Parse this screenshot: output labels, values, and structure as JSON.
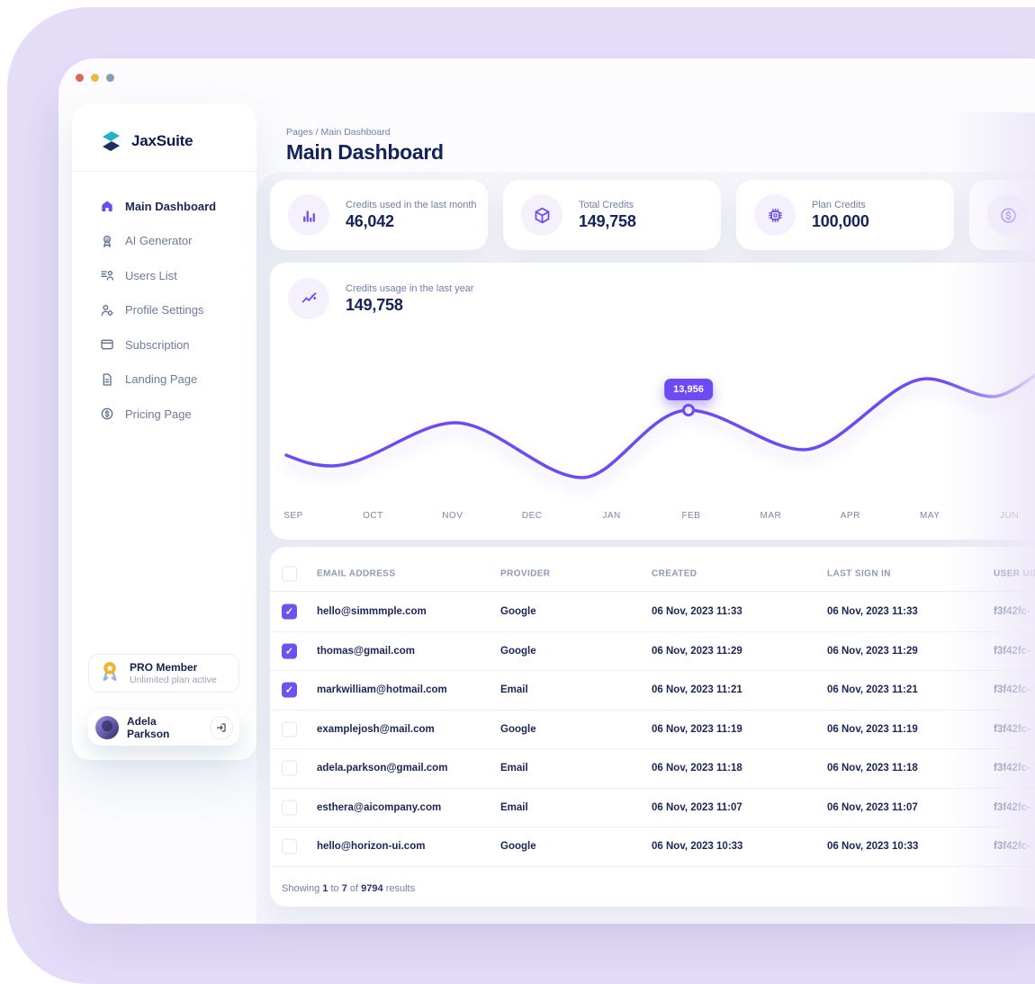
{
  "colors": {
    "accent": "#6C4BF5",
    "checkbox": "#6E51EF",
    "chart_line": "#6C4BF5",
    "background_lavender": "#E5DDF8",
    "text_navy": "#1B2559",
    "text_gray": "#707EAE",
    "traffic_lights": [
      "#D9695A",
      "#E9BA47",
      "#8D9DB0"
    ]
  },
  "sidebar": {
    "brand": "JaxSuite",
    "items": [
      {
        "label": "Main Dashboard",
        "icon": "home",
        "active": true
      },
      {
        "label": "AI Generator",
        "icon": "badge",
        "active": false
      },
      {
        "label": "Users List",
        "icon": "users-list",
        "active": false
      },
      {
        "label": "Profile Settings",
        "icon": "user-gear",
        "active": false
      },
      {
        "label": "Subscription",
        "icon": "credit-card",
        "active": false
      },
      {
        "label": "Landing Page",
        "icon": "document",
        "active": false
      },
      {
        "label": "Pricing Page",
        "icon": "dollar-circle",
        "active": false
      }
    ],
    "pro_card": {
      "title": "PRO Member",
      "subtitle": "Unlimited plan active",
      "icon": "medal"
    },
    "user": {
      "name": "Adela Parkson",
      "logout_icon": "logout"
    }
  },
  "header": {
    "breadcrumb": "Pages / Main Dashboard",
    "title": "Main Dashboard"
  },
  "stats": [
    {
      "label": "Credits used in the last month",
      "value": "46,042",
      "icon": "bar-chart"
    },
    {
      "label": "Total Credits",
      "value": "149,758",
      "icon": "cube"
    },
    {
      "label": "Plan Credits",
      "value": "100,000",
      "icon": "chip"
    },
    {
      "label": "",
      "value": "",
      "icon": "coin"
    }
  ],
  "chart_card": {
    "label": "Credits usage in the last year",
    "value": "149,758",
    "icon": "trend",
    "tooltip": "13,956"
  },
  "chart_data": {
    "type": "line",
    "title": "Credits usage in the last year",
    "categories": [
      "SEP",
      "OCT",
      "NOV",
      "DEC",
      "JAN",
      "FEB",
      "MAR",
      "APR",
      "MAY",
      "JUN"
    ],
    "series": [
      {
        "name": "Credits",
        "values": [
          10400,
          11500,
          13000,
          9800,
          10500,
          13956,
          11500,
          12900,
          16400,
          16200
        ]
      }
    ],
    "highlighted_point": {
      "category": "FEB",
      "value": 13956,
      "label": "13,956"
    },
    "line_color": "#6C4BF5",
    "grid": false,
    "y_axis_visible": false,
    "legend": "none",
    "note": "values other than the FEB tooltip are estimated from curve height"
  },
  "table": {
    "columns": [
      "EMAIL ADDRESS",
      "PROVIDER",
      "CREATED",
      "LAST SIGN IN",
      "USER UID"
    ],
    "rows": [
      {
        "checked": true,
        "email": "hello@simmmple.com",
        "provider": "Google",
        "created": "06 Nov, 2023 11:33",
        "last_sign_in": "06 Nov, 2023 11:33",
        "user_uid": "f3f42fc-"
      },
      {
        "checked": true,
        "email": "thomas@gmail.com",
        "provider": "Google",
        "created": "06 Nov, 2023 11:29",
        "last_sign_in": "06 Nov, 2023 11:29",
        "user_uid": "f3f42fc-"
      },
      {
        "checked": true,
        "email": "markwilliam@hotmail.com",
        "provider": "Email",
        "created": "06 Nov, 2023 11:21",
        "last_sign_in": "06 Nov, 2023 11:21",
        "user_uid": "f3f42fc-"
      },
      {
        "checked": false,
        "email": "examplejosh@mail.com",
        "provider": "Google",
        "created": "06 Nov, 2023 11:19",
        "last_sign_in": "06 Nov, 2023 11:19",
        "user_uid": "f3f42fc-"
      },
      {
        "checked": false,
        "email": "adela.parkson@gmail.com",
        "provider": "Email",
        "created": "06 Nov, 2023 11:18",
        "last_sign_in": "06 Nov, 2023 11:18",
        "user_uid": "f3f42fc-"
      },
      {
        "checked": false,
        "email": "esthera@aicompany.com",
        "provider": "Email",
        "created": "06 Nov, 2023 11:07",
        "last_sign_in": "06 Nov, 2023 11:07",
        "user_uid": "f3f42fc-"
      },
      {
        "checked": false,
        "email": "hello@horizon-ui.com",
        "provider": "Google",
        "created": "06 Nov, 2023 10:33",
        "last_sign_in": "06 Nov, 2023 10:33",
        "user_uid": "f3f42fc-"
      }
    ],
    "footer": {
      "showing": "Showing",
      "from": "1",
      "to_word": "to",
      "to": "7",
      "of_word": "of",
      "total": "9794",
      "results_word": "results"
    }
  }
}
